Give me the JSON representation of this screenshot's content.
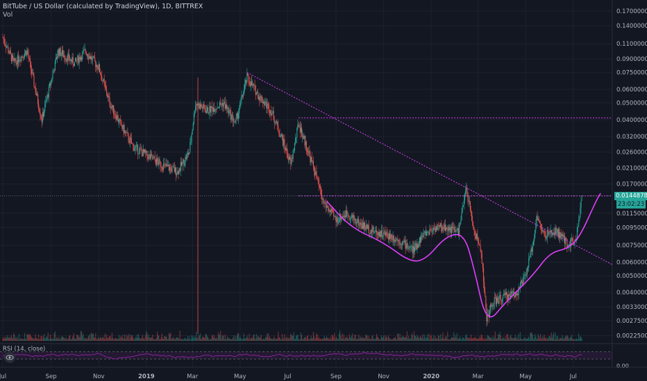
{
  "header": {
    "title": "BitTube / US Dollar (calculated by TradingView), 1D, BITTREX",
    "volume_label": "Vol"
  },
  "rsi": {
    "label": "RSI (14, close)",
    "tick_label": "0.00"
  },
  "price_tag": {
    "value": "0.01448783",
    "countdown": "23:02:23",
    "color": "#26a69a"
  },
  "colors": {
    "background": "#131722",
    "candle_up": "#26a69a",
    "candle_down": "#ef5350",
    "drawing": "#e040fb",
    "rsi_line": "#9c27b0"
  },
  "chart_data": {
    "type": "candlestick",
    "scale": "log",
    "symbol": "BitTube / US Dollar",
    "interval": "1D",
    "exchange": "BITTREX",
    "y_ticks": [
      0.17,
      0.14,
      0.11,
      0.09,
      0.075,
      0.06,
      0.05,
      0.04,
      0.032,
      0.026,
      0.021,
      0.017,
      0.0115,
      0.0095,
      0.0075,
      0.006,
      0.005,
      0.004,
      0.0033,
      0.00275,
      0.00225
    ],
    "y_tick_labels": [
      "0.17000000",
      "0.14000000",
      "0.11000000",
      "0.09000000",
      "0.07500000",
      "0.06000000",
      "0.05000000",
      "0.04000000",
      "0.03200000",
      "0.02600000",
      "0.02100000",
      "0.01700000",
      "0.01150000",
      "0.00950000",
      "0.00750000",
      "0.00600000",
      "0.00500000",
      "0.00400000",
      "0.00330000",
      "0.00275000",
      "0.00225000"
    ],
    "ylim": [
      0.0021,
      0.19
    ],
    "x_labels": [
      "Jul",
      "Sep",
      "Nov",
      "2019",
      "Mar",
      "May",
      "Jul",
      "Sep",
      "Nov",
      "2020",
      "Mar",
      "May",
      "Jul"
    ],
    "x_range": [
      "2018-07-01",
      "2020-08-20"
    ],
    "price_path": [
      {
        "date": "2018-07-01",
        "price": 0.12
      },
      {
        "date": "2018-07-15",
        "price": 0.085
      },
      {
        "date": "2018-08-01",
        "price": 0.1
      },
      {
        "date": "2018-08-20",
        "price": 0.04
      },
      {
        "date": "2018-09-10",
        "price": 0.1
      },
      {
        "date": "2018-10-01",
        "price": 0.085
      },
      {
        "date": "2018-10-15",
        "price": 0.1
      },
      {
        "date": "2018-11-01",
        "price": 0.08
      },
      {
        "date": "2018-11-15",
        "price": 0.05
      },
      {
        "date": "2018-12-01",
        "price": 0.036
      },
      {
        "date": "2018-12-15",
        "price": 0.028
      },
      {
        "date": "2019-01-01",
        "price": 0.025
      },
      {
        "date": "2019-01-20",
        "price": 0.022
      },
      {
        "date": "2019-02-10",
        "price": 0.02
      },
      {
        "date": "2019-02-25",
        "price": 0.026
      },
      {
        "date": "2019-03-05",
        "price": 0.05
      },
      {
        "date": "2019-03-20",
        "price": 0.045
      },
      {
        "date": "2019-04-10",
        "price": 0.05
      },
      {
        "date": "2019-04-25",
        "price": 0.038
      },
      {
        "date": "2019-05-10",
        "price": 0.07
      },
      {
        "date": "2019-05-25",
        "price": 0.055
      },
      {
        "date": "2019-06-10",
        "price": 0.045
      },
      {
        "date": "2019-06-25",
        "price": 0.03
      },
      {
        "date": "2019-07-05",
        "price": 0.022
      },
      {
        "date": "2019-07-15",
        "price": 0.038
      },
      {
        "date": "2019-07-25",
        "price": 0.028
      },
      {
        "date": "2019-08-05",
        "price": 0.02
      },
      {
        "date": "2019-08-15",
        "price": 0.0135
      },
      {
        "date": "2019-09-01",
        "price": 0.0105
      },
      {
        "date": "2019-09-15",
        "price": 0.0115
      },
      {
        "date": "2019-10-01",
        "price": 0.01
      },
      {
        "date": "2019-10-20",
        "price": 0.009
      },
      {
        "date": "2019-11-10",
        "price": 0.0085
      },
      {
        "date": "2019-11-25",
        "price": 0.0078
      },
      {
        "date": "2019-12-10",
        "price": 0.007
      },
      {
        "date": "2019-12-20",
        "price": 0.0085
      },
      {
        "date": "2020-01-05",
        "price": 0.0095
      },
      {
        "date": "2020-01-20",
        "price": 0.0095
      },
      {
        "date": "2020-02-05",
        "price": 0.009
      },
      {
        "date": "2020-02-15",
        "price": 0.016
      },
      {
        "date": "2020-02-25",
        "price": 0.009
      },
      {
        "date": "2020-03-05",
        "price": 0.007
      },
      {
        "date": "2020-03-12",
        "price": 0.0028
      },
      {
        "date": "2020-03-20",
        "price": 0.0035
      },
      {
        "date": "2020-04-05",
        "price": 0.0038
      },
      {
        "date": "2020-04-20",
        "price": 0.004
      },
      {
        "date": "2020-05-01",
        "price": 0.005
      },
      {
        "date": "2020-05-10",
        "price": 0.0075
      },
      {
        "date": "2020-05-15",
        "price": 0.011
      },
      {
        "date": "2020-05-25",
        "price": 0.0085
      },
      {
        "date": "2020-06-10",
        "price": 0.009
      },
      {
        "date": "2020-06-25",
        "price": 0.0075
      },
      {
        "date": "2020-07-05",
        "price": 0.0085
      },
      {
        "date": "2020-07-12",
        "price": 0.0145
      }
    ],
    "drawings": [
      {
        "kind": "dotted-trendline",
        "from": {
          "date": "2019-05-10",
          "price": 0.075
        },
        "to": {
          "date": "2020-08-20",
          "price": 0.0058
        }
      },
      {
        "kind": "dotted-horizontal",
        "from": {
          "date": "2019-07-15",
          "price": 0.041
        },
        "to": {
          "date": "2020-08-20",
          "price": 0.041
        }
      },
      {
        "kind": "dotted-horizontal",
        "from": {
          "date": "2019-07-15",
          "price": 0.0145
        },
        "to": {
          "date": "2020-08-20",
          "price": 0.0145
        }
      },
      {
        "kind": "curve",
        "points": [
          {
            "date": "2019-08-20",
            "price": 0.0135
          },
          {
            "date": "2019-09-20",
            "price": 0.0095
          },
          {
            "date": "2019-11-01",
            "price": 0.0078
          },
          {
            "date": "2019-12-05",
            "price": 0.006
          },
          {
            "date": "2019-12-25",
            "price": 0.0062
          },
          {
            "date": "2020-01-20",
            "price": 0.0085
          },
          {
            "date": "2020-02-12",
            "price": 0.0088
          },
          {
            "date": "2020-02-25",
            "price": 0.0055
          },
          {
            "date": "2020-03-12",
            "price": 0.0026
          },
          {
            "date": "2020-04-05",
            "price": 0.0035
          },
          {
            "date": "2020-05-10",
            "price": 0.005
          },
          {
            "date": "2020-06-01",
            "price": 0.0068
          },
          {
            "date": "2020-06-25",
            "price": 0.0072
          },
          {
            "date": "2020-07-10",
            "price": 0.0085
          },
          {
            "date": "2020-07-30",
            "price": 0.0135
          },
          {
            "date": "2020-08-05",
            "price": 0.015
          }
        ]
      }
    ],
    "current_price": 0.01448783,
    "rsi": {
      "period": 14,
      "source": "close",
      "upper": 70,
      "lower": 30
    }
  }
}
